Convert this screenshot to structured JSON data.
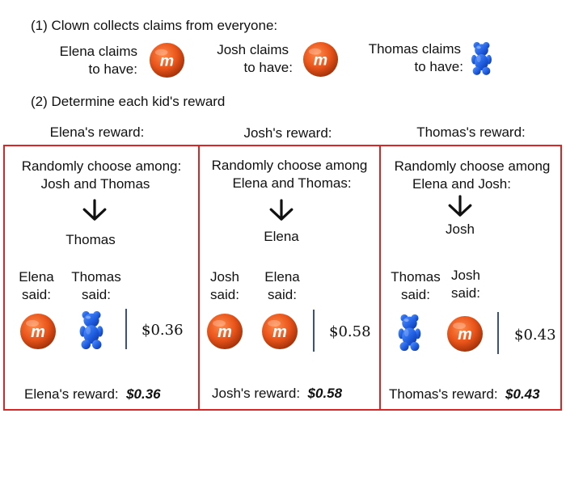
{
  "step1": {
    "heading": "(1) Clown collects claims from everyone:",
    "claims": [
      {
        "line1": "Elena claims",
        "line2": "to have:",
        "icon": "candy-icon"
      },
      {
        "line1": "Josh claims",
        "line2": "to have:",
        "icon": "candy-icon"
      },
      {
        "line1": "Thomas claims",
        "line2": "to have:",
        "icon": "gummy-bear-icon"
      }
    ]
  },
  "step2": {
    "heading": "(2) Determine each kid's reward"
  },
  "panels": [
    {
      "title": "Elena's reward:",
      "choose_line1": "Randomly choose among:",
      "choose_line2": "Josh and Thomas",
      "chosen": "Thomas",
      "said": [
        {
          "name": "Elena",
          "word": "said:"
        },
        {
          "name": "Thomas",
          "word": "said:"
        }
      ],
      "price": "$0.36",
      "reward_label": "Elena's reward:",
      "reward_value": "$0.36"
    },
    {
      "title": "Josh's reward:",
      "choose_line1": "Randomly choose among",
      "choose_line2": "Elena and Thomas:",
      "chosen": "Elena",
      "said": [
        {
          "name": "Josh",
          "word": "said:"
        },
        {
          "name": "Elena",
          "word": "said:"
        }
      ],
      "price": "$0.58",
      "reward_label": "Josh's reward:",
      "reward_value": "$0.58"
    },
    {
      "title": "Thomas's reward:",
      "choose_line1": "Randomly choose among",
      "choose_line2": "Elena and Josh:",
      "chosen": "Josh",
      "said": [
        {
          "name": "Thomas",
          "word": "said:"
        },
        {
          "name": "Josh",
          "word": "said:"
        }
      ],
      "price": "$0.43",
      "reward_label": "Thomas's reward:",
      "reward_value": "$0.43"
    }
  ],
  "colors": {
    "panel_border": "#d92626",
    "candy": "#e8541a",
    "gummy": "#1f5fe0",
    "divider": "#3a4f8f"
  },
  "candy_letter": "m"
}
